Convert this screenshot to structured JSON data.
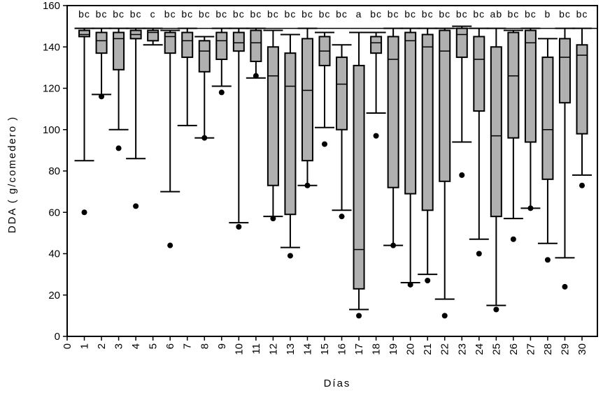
{
  "chart_data": {
    "type": "boxplot",
    "xlabel": "Días",
    "ylabel": "DDA   ( g/comedero )",
    "xlim": [
      0,
      30
    ],
    "ylim": [
      0,
      160
    ],
    "x_ticks": [
      "0",
      "1",
      "2",
      "3",
      "4",
      "5",
      "6",
      "7",
      "8",
      "9",
      "10",
      "11",
      "12",
      "13",
      "14",
      "15",
      "16",
      "17",
      "18",
      "19",
      "20",
      "21",
      "22",
      "23",
      "24",
      "25",
      "26",
      "27",
      "28",
      "29",
      "30"
    ],
    "y_ticks": [
      "0",
      "20",
      "40",
      "60",
      "80",
      "100",
      "120",
      "140",
      "160"
    ],
    "reference_line": 149,
    "box_fill": "#b0b0b0",
    "boxes": [
      {
        "day": 1,
        "whisker_low": 85,
        "q1": 145,
        "median": 146,
        "q3": 148,
        "whisker_high": 149,
        "outliers": [
          60
        ],
        "sig": "bc"
      },
      {
        "day": 2,
        "whisker_low": 117,
        "q1": 137,
        "median": 143,
        "q3": 147,
        "whisker_high": 149,
        "outliers": [
          116
        ],
        "sig": "bc"
      },
      {
        "day": 3,
        "whisker_low": 100,
        "q1": 129,
        "median": 144,
        "q3": 147,
        "whisker_high": 149,
        "outliers": [
          91
        ],
        "sig": "bc"
      },
      {
        "day": 4,
        "whisker_low": 86,
        "q1": 144,
        "median": 146,
        "q3": 148,
        "whisker_high": 149,
        "outliers": [
          63
        ],
        "sig": "bc"
      },
      {
        "day": 5,
        "whisker_low": 141,
        "q1": 143,
        "median": 147,
        "q3": 148,
        "whisker_high": 149,
        "outliers": [],
        "sig": "c"
      },
      {
        "day": 6,
        "whisker_low": 70,
        "q1": 137,
        "median": 145,
        "q3": 147,
        "whisker_high": 148,
        "outliers": [
          44
        ],
        "sig": "bc"
      },
      {
        "day": 7,
        "whisker_low": 102,
        "q1": 135,
        "median": 143,
        "q3": 147,
        "whisker_high": 149,
        "outliers": [],
        "sig": "bc"
      },
      {
        "day": 8,
        "whisker_low": 96,
        "q1": 128,
        "median": 138,
        "q3": 143,
        "whisker_high": 145,
        "outliers": [
          96
        ],
        "sig": "bc"
      },
      {
        "day": 9,
        "whisker_low": 121,
        "q1": 134,
        "median": 143,
        "q3": 147,
        "whisker_high": 149,
        "outliers": [
          118
        ],
        "sig": "bc"
      },
      {
        "day": 10,
        "whisker_low": 55,
        "q1": 138,
        "median": 142,
        "q3": 147,
        "whisker_high": 149,
        "outliers": [
          53
        ],
        "sig": "bc"
      },
      {
        "day": 11,
        "whisker_low": 125,
        "q1": 133,
        "median": 142,
        "q3": 148,
        "whisker_high": 149,
        "outliers": [
          126
        ],
        "sig": "bc"
      },
      {
        "day": 12,
        "whisker_low": 58,
        "q1": 73,
        "median": 126,
        "q3": 140,
        "whisker_high": 148,
        "outliers": [
          57
        ],
        "sig": "bc"
      },
      {
        "day": 13,
        "whisker_low": 43,
        "q1": 59,
        "median": 121,
        "q3": 137,
        "whisker_high": 146,
        "outliers": [
          39
        ],
        "sig": "bc"
      },
      {
        "day": 14,
        "whisker_low": 73,
        "q1": 85,
        "median": 119,
        "q3": 144,
        "whisker_high": 149,
        "outliers": [
          73
        ],
        "sig": "bc"
      },
      {
        "day": 15,
        "whisker_low": 101,
        "q1": 131,
        "median": 138,
        "q3": 145,
        "whisker_high": 147,
        "outliers": [
          93
        ],
        "sig": "bc"
      },
      {
        "day": 16,
        "whisker_low": 61,
        "q1": 100,
        "median": 122,
        "q3": 135,
        "whisker_high": 141,
        "outliers": [
          58
        ],
        "sig": "bc"
      },
      {
        "day": 17,
        "whisker_low": 13,
        "q1": 23,
        "median": 42,
        "q3": 131,
        "whisker_high": 147,
        "outliers": [
          10
        ],
        "sig": "a"
      },
      {
        "day": 18,
        "whisker_low": 108,
        "q1": 137,
        "median": 142,
        "q3": 145,
        "whisker_high": 147,
        "outliers": [
          97
        ],
        "sig": "bc"
      },
      {
        "day": 19,
        "whisker_low": 44,
        "q1": 72,
        "median": 134,
        "q3": 145,
        "whisker_high": 149,
        "outliers": [
          44
        ],
        "sig": "bc"
      },
      {
        "day": 20,
        "whisker_low": 26,
        "q1": 69,
        "median": 143,
        "q3": 147,
        "whisker_high": 149,
        "outliers": [
          25
        ],
        "sig": "bc"
      },
      {
        "day": 21,
        "whisker_low": 30,
        "q1": 61,
        "median": 140,
        "q3": 146,
        "whisker_high": 149,
        "outliers": [
          27
        ],
        "sig": "bc"
      },
      {
        "day": 22,
        "whisker_low": 18,
        "q1": 75,
        "median": 138,
        "q3": 148,
        "whisker_high": 149,
        "outliers": [
          10
        ],
        "sig": "bc"
      },
      {
        "day": 23,
        "whisker_low": 94,
        "q1": 135,
        "median": 146,
        "q3": 149,
        "whisker_high": 150,
        "outliers": [
          78
        ],
        "sig": "bc"
      },
      {
        "day": 24,
        "whisker_low": 47,
        "q1": 109,
        "median": 134,
        "q3": 145,
        "whisker_high": 149,
        "outliers": [
          40
        ],
        "sig": "bc"
      },
      {
        "day": 25,
        "whisker_low": 15,
        "q1": 58,
        "median": 97,
        "q3": 140,
        "whisker_high": 149,
        "outliers": [
          13
        ],
        "sig": "ab"
      },
      {
        "day": 26,
        "whisker_low": 57,
        "q1": 96,
        "median": 126,
        "q3": 147,
        "whisker_high": 148,
        "outliers": [
          47
        ],
        "sig": "bc"
      },
      {
        "day": 27,
        "whisker_low": 62,
        "q1": 94,
        "median": 142,
        "q3": 148,
        "whisker_high": 149,
        "outliers": [
          62
        ],
        "sig": "bc"
      },
      {
        "day": 28,
        "whisker_low": 45,
        "q1": 76,
        "median": 100,
        "q3": 135,
        "whisker_high": 144,
        "outliers": [
          37
        ],
        "sig": "b"
      },
      {
        "day": 29,
        "whisker_low": 38,
        "q1": 113,
        "median": 135,
        "q3": 144,
        "whisker_high": 149,
        "outliers": [
          24
        ],
        "sig": "bc"
      },
      {
        "day": 30,
        "whisker_low": 78,
        "q1": 98,
        "median": 136,
        "q3": 141,
        "whisker_high": 149,
        "outliers": [
          73
        ],
        "sig": "bc"
      }
    ]
  }
}
